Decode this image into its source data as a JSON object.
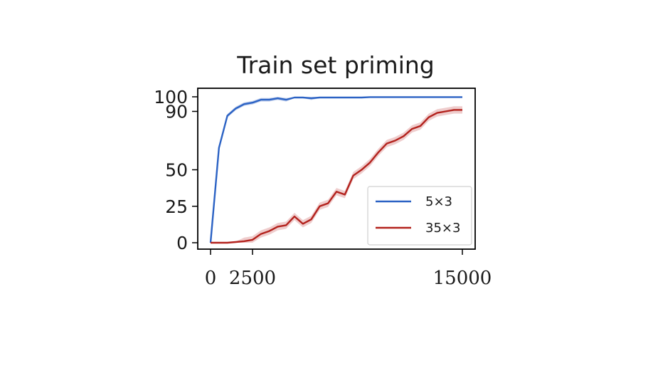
{
  "chart_data": {
    "type": "line",
    "title": "Train set priming",
    "xlabel": "",
    "ylabel": "",
    "xlim": [
      0,
      15000
    ],
    "ylim": [
      0,
      100
    ],
    "x_ticks": [
      0,
      2500,
      15000
    ],
    "x_tick_labels": [
      "0",
      "2500",
      "15000"
    ],
    "y_ticks": [
      0,
      25,
      50,
      90,
      100
    ],
    "y_tick_labels": [
      "0",
      "25",
      "50",
      "90",
      "100"
    ],
    "grid": false,
    "legend": "lower-right",
    "colors": {
      "5x3": "#2b62c4",
      "35x3": "#b3221d",
      "band_35x3": "#e8b8b8",
      "band_5x3": "#a9bde6"
    },
    "x": [
      0,
      500,
      1000,
      1500,
      2000,
      2500,
      3000,
      3500,
      4000,
      4500,
      5000,
      5500,
      6000,
      6500,
      7000,
      7500,
      8000,
      8500,
      9000,
      9500,
      10000,
      10500,
      11000,
      11500,
      12000,
      12500,
      13000,
      13500,
      14000,
      14500,
      15000
    ],
    "series": [
      {
        "name": "5×3",
        "values": [
          0,
          65,
          87,
          92,
          95,
          96,
          98,
          98,
          99,
          98,
          99.5,
          99.5,
          99,
          99.5,
          99.5,
          99.5,
          99.5,
          99.5,
          99.5,
          99.8,
          99.8,
          99.8,
          99.8,
          99.8,
          99.8,
          99.8,
          99.8,
          99.8,
          99.8,
          99.8,
          99.8
        ]
      },
      {
        "name": "35×3",
        "values": [
          0,
          0,
          0,
          0.5,
          1,
          2,
          6,
          8,
          11,
          12,
          18,
          13,
          16,
          25,
          27,
          35,
          33,
          46,
          50,
          55,
          62,
          68,
          70,
          73,
          78,
          80,
          86,
          89,
          90,
          91,
          91
        ]
      }
    ]
  }
}
